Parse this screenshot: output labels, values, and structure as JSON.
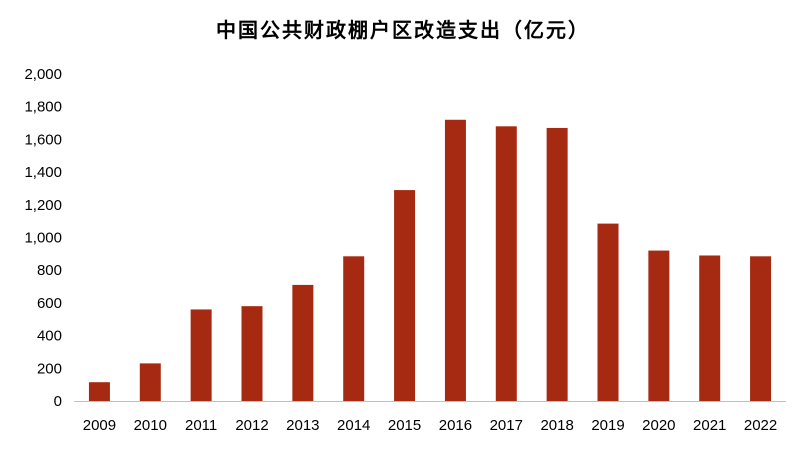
{
  "chart_data": {
    "type": "bar",
    "title": "中国公共财政棚户区改造支出（亿元）",
    "xlabel": "",
    "ylabel": "",
    "categories": [
      "2009",
      "2010",
      "2011",
      "2012",
      "2013",
      "2014",
      "2015",
      "2016",
      "2017",
      "2018",
      "2019",
      "2020",
      "2021",
      "2022"
    ],
    "values": [
      115,
      230,
      560,
      580,
      710,
      885,
      1290,
      1720,
      1680,
      1670,
      1085,
      920,
      890,
      885
    ],
    "ylim": [
      0,
      2000
    ],
    "yticks": [
      0,
      200,
      400,
      600,
      800,
      1000,
      1200,
      1400,
      1600,
      1800,
      2000
    ],
    "ytick_labels": [
      "0",
      "200",
      "400",
      "600",
      "800",
      "1,000",
      "1,200",
      "1,400",
      "1,600",
      "1,800",
      "2,000"
    ],
    "bar_color": "#A52A11",
    "grid": false,
    "legend": "none"
  }
}
